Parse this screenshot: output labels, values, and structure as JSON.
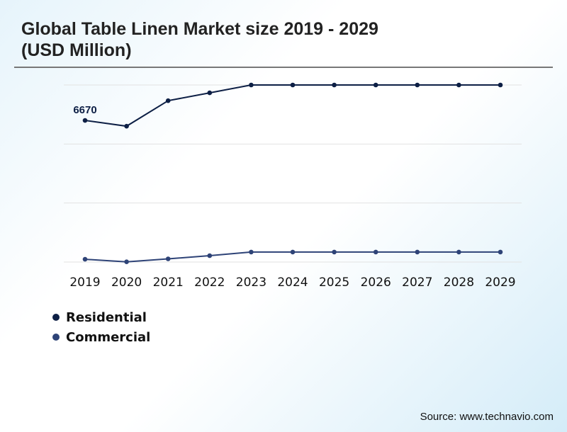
{
  "chart_data": {
    "type": "line",
    "title": "Global Table Linen Market size 2019 - 2029 (USD Million)",
    "title_lines": [
      "Global Table Linen Market size 2019 - 2029",
      "(USD Million)"
    ],
    "categories": [
      "2019",
      "2020",
      "2021",
      "2022",
      "2023",
      "2024",
      "2025",
      "2026",
      "2027",
      "2028",
      "2029"
    ],
    "series": [
      {
        "name": "Residential",
        "color": "#0d1f45",
        "values": [
          6670,
          6400,
          7600,
          7970,
          8340,
          8340,
          8340,
          8340,
          8340,
          8340,
          8340
        ]
      },
      {
        "name": "Commercial",
        "color": "#2e4377",
        "values": [
          130,
          10,
          150,
          300,
          470,
          470,
          470,
          470,
          470,
          470,
          470
        ]
      }
    ],
    "data_labels": [
      {
        "series": "Residential",
        "category": "2019",
        "text": "6670"
      }
    ],
    "ylim": [
      0,
      8340
    ],
    "grid": true,
    "y_axis_labels": false,
    "legend_placement": "bottom-left"
  },
  "source": "Source: www.technavio.com"
}
